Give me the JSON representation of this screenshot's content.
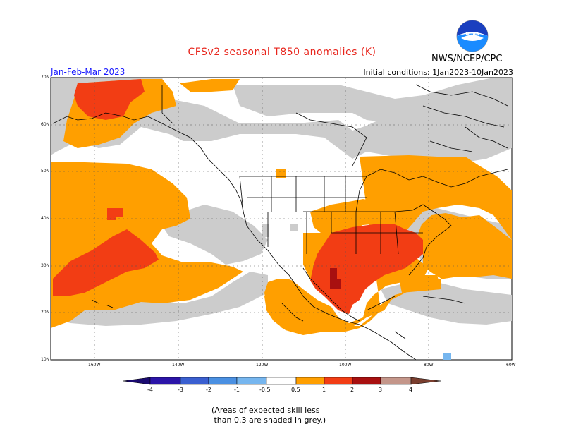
{
  "title": "CFSv2 seasonal T850 anomalies (K)",
  "agency": "NWS/NCEP/CPC",
  "period": "Jan-Feb-Mar 2023",
  "initial_conditions": "Initial conditions: 1Jan2023-10Jan2023",
  "logo_text": "NOAA",
  "y_ticks": [
    "70N",
    "60N",
    "50N",
    "40N",
    "30N",
    "20N",
    "10N"
  ],
  "x_ticks": [
    "160W",
    "140W",
    "120W",
    "100W",
    "80W",
    "60W"
  ],
  "legend": {
    "labels": [
      "-4",
      "-3",
      "-2",
      "-1",
      "-0.5",
      "0.5",
      "1",
      "2",
      "3",
      "4"
    ],
    "colors": [
      "#2b14a8",
      "#3a5fd0",
      "#4a90e2",
      "#76b6ef",
      "#ffffff",
      "#ff9f00",
      "#f23d14",
      "#a81010",
      "#c4968a",
      "#7a3e2e"
    ]
  },
  "note": "(Areas of expected skill less\n than 0.3 are shaded in grey.)",
  "colors": {
    "grey_low_skill": "#cccccc",
    "anomaly_0_5_to_1": "#ff9f00",
    "anomaly_1_to_2": "#f23d14",
    "anomaly_2_to_3": "#a81010",
    "title_red": "#e8251c",
    "period_blue": "#1a1aff"
  }
}
